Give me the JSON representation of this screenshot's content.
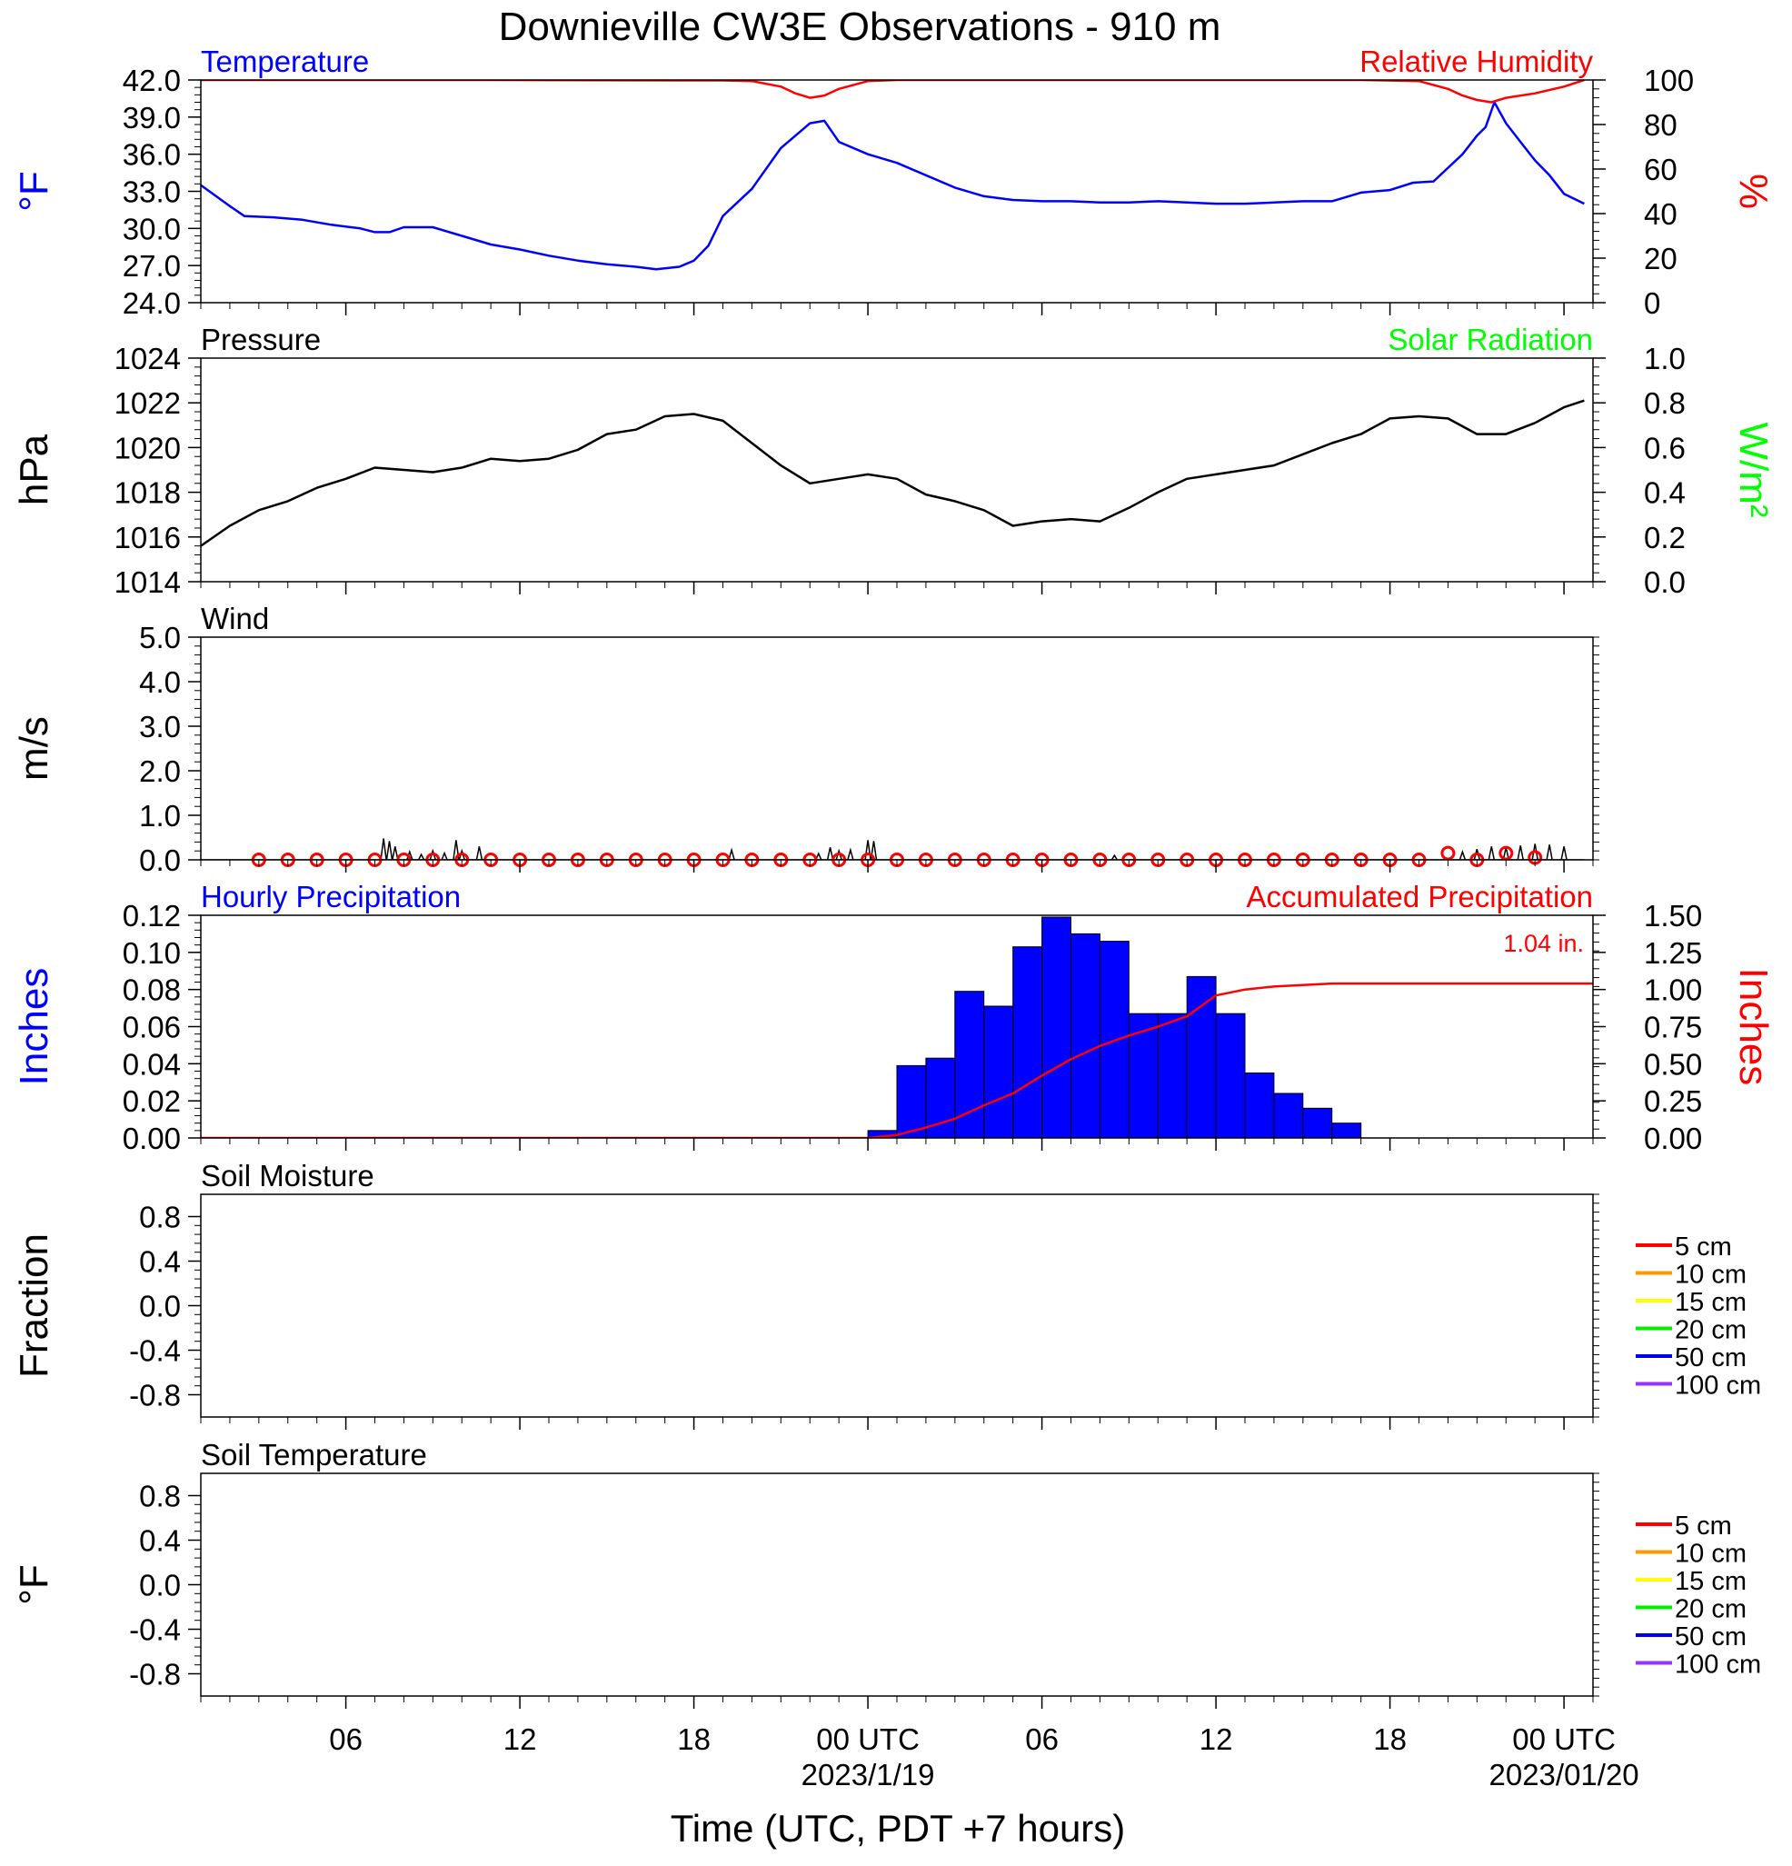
{
  "title": "Downieville CW3E Observations - 910 m",
  "xlabel": "Time (UTC, PDT +7 hours)",
  "colors": {
    "temperature": "#0000ff",
    "humidity": "#ff0000",
    "pressure": "#000000",
    "solar": "#00ff00",
    "wind": "#000000",
    "wind_marker": "#ff0000",
    "hourly_bar": "#0000ff",
    "accumulated": "#ff0000"
  },
  "time_axis": {
    "range_hours": [
      0,
      48
    ],
    "major_ticks": [
      {
        "h": 5,
        "label": "06",
        "date": ""
      },
      {
        "h": 11,
        "label": "12",
        "date": ""
      },
      {
        "h": 17,
        "label": "18",
        "date": ""
      },
      {
        "h": 23,
        "label": "00 UTC",
        "date": "2023/1/19"
      },
      {
        "h": 29,
        "label": "06",
        "date": ""
      },
      {
        "h": 35,
        "label": "12",
        "date": ""
      },
      {
        "h": 41,
        "label": "18",
        "date": ""
      },
      {
        "h": 47,
        "label": "00 UTC",
        "date": "2023/01/20"
      }
    ]
  },
  "chart_data": [
    {
      "id": "temp_rh",
      "type": "line",
      "left_title": "Temperature",
      "right_title": "Relative Humidity",
      "ylabel_left": "°F",
      "ylabel_right": "%",
      "ylim_left": [
        24,
        42
      ],
      "ylim_right": [
        0,
        100
      ],
      "yticks_left": [
        "42.0",
        "39.0",
        "36.0",
        "33.0",
        "30.0",
        "27.0",
        "24.0"
      ],
      "yticks_right": [
        "100",
        "80",
        "60",
        "40",
        "20",
        "0"
      ],
      "series": [
        {
          "name": "Temperature",
          "axis": "left",
          "x": [
            0,
            1,
            1.5,
            2.5,
            3.5,
            4.5,
            5.5,
            6,
            6.5,
            7,
            8,
            9,
            10,
            11,
            12,
            13,
            14,
            15,
            15.7,
            16.5,
            17,
            17.5,
            18,
            19,
            20,
            21,
            21.5,
            22,
            23,
            24,
            25,
            26,
            27,
            28,
            29,
            30,
            31,
            32,
            33,
            34,
            35,
            36,
            37,
            38,
            39,
            40,
            41,
            41.8,
            42.5,
            43.5,
            44,
            44.3,
            44.6,
            45,
            45.5,
            46,
            46.5,
            47,
            47.7
          ],
          "y": [
            33.5,
            31.8,
            31.0,
            30.9,
            30.7,
            30.3,
            30.0,
            29.7,
            29.7,
            30.1,
            30.1,
            29.4,
            28.7,
            28.3,
            27.8,
            27.4,
            27.1,
            26.9,
            26.7,
            26.9,
            27.4,
            28.6,
            31.0,
            33.2,
            36.5,
            38.5,
            38.7,
            37.0,
            36.0,
            35.3,
            34.3,
            33.3,
            32.6,
            32.3,
            32.2,
            32.2,
            32.1,
            32.1,
            32.2,
            32.1,
            32.0,
            32.0,
            32.1,
            32.2,
            32.2,
            32.9,
            33.1,
            33.7,
            33.8,
            36.0,
            37.5,
            38.2,
            40.2,
            38.5,
            37.0,
            35.5,
            34.3,
            32.8,
            32.0
          ]
        },
        {
          "name": "Relative Humidity",
          "axis": "right",
          "x": [
            0,
            10,
            17,
            18,
            19,
            20,
            20.5,
            21,
            21.5,
            22,
            23,
            24,
            30,
            40,
            42,
            43,
            43.5,
            44,
            44.5,
            45,
            46,
            47,
            47.7
          ],
          "y": [
            100,
            100,
            99.8,
            99.8,
            99.5,
            97,
            94,
            92,
            93,
            96,
            99.5,
            100,
            100,
            100,
            99.5,
            96,
            93,
            91,
            90,
            92,
            94,
            97,
            100
          ]
        }
      ]
    },
    {
      "id": "pressure_solar",
      "type": "line",
      "left_title": "Pressure",
      "right_title": "Solar Radiation",
      "ylabel_left": "hPa",
      "ylabel_right": "W/m²",
      "ylim_left": [
        1014,
        1024
      ],
      "ylim_right": [
        0,
        1
      ],
      "yticks_left": [
        "1024",
        "1022",
        "1020",
        "1018",
        "1016",
        "1014"
      ],
      "yticks_right": [
        "1.0",
        "0.8",
        "0.6",
        "0.4",
        "0.2",
        "0.0"
      ],
      "series": [
        {
          "name": "Pressure",
          "axis": "left",
          "x": [
            0,
            1,
            2,
            3,
            4,
            5,
            6,
            7,
            8,
            9,
            10,
            11,
            12,
            13,
            14,
            15,
            16,
            17,
            18,
            19,
            20,
            21,
            22,
            23,
            24,
            25,
            26,
            27,
            28,
            29,
            30,
            31,
            32,
            33,
            34,
            35,
            36,
            37,
            38,
            39,
            40,
            41,
            42,
            43,
            44,
            45,
            46,
            47,
            47.7
          ],
          "y": [
            1015.6,
            1016.5,
            1017.2,
            1017.6,
            1018.2,
            1018.6,
            1019.1,
            1019.0,
            1018.9,
            1019.1,
            1019.5,
            1019.4,
            1019.5,
            1019.9,
            1020.6,
            1020.8,
            1021.4,
            1021.5,
            1021.2,
            1020.2,
            1019.2,
            1018.4,
            1018.6,
            1018.8,
            1018.6,
            1017.9,
            1017.6,
            1017.2,
            1016.5,
            1016.7,
            1016.8,
            1016.7,
            1017.3,
            1018.0,
            1018.6,
            1018.8,
            1019.0,
            1019.2,
            1019.7,
            1020.2,
            1020.6,
            1021.3,
            1021.4,
            1021.3,
            1020.6,
            1020.6,
            1021.1,
            1021.8,
            1022.1
          ]
        }
      ]
    },
    {
      "id": "wind",
      "type": "line",
      "left_title": "Wind",
      "ylabel_left": "m/s",
      "ylim_left": [
        0,
        5
      ],
      "yticks_left": [
        "5.0",
        "4.0",
        "3.0",
        "2.0",
        "1.0",
        "0.0"
      ],
      "series": [
        {
          "name": "Wind",
          "axis": "left",
          "spikes": [
            [
              6.3,
              0.48
            ],
            [
              6.5,
              0.42
            ],
            [
              6.7,
              0.3
            ],
            [
              7.2,
              0.18
            ],
            [
              7.6,
              0.12
            ],
            [
              8.0,
              0.2
            ],
            [
              8.4,
              0.15
            ],
            [
              8.8,
              0.44
            ],
            [
              9.0,
              0.2
            ],
            [
              9.6,
              0.3
            ],
            [
              18.3,
              0.22
            ],
            [
              21.3,
              0.14
            ],
            [
              21.7,
              0.28
            ],
            [
              22.0,
              0.2
            ],
            [
              22.4,
              0.22
            ],
            [
              23.0,
              0.44
            ],
            [
              23.2,
              0.42
            ],
            [
              31.5,
              0.1
            ],
            [
              43.5,
              0.18
            ],
            [
              44.0,
              0.24
            ],
            [
              44.5,
              0.3
            ],
            [
              45.0,
              0.28
            ],
            [
              45.5,
              0.32
            ],
            [
              46.0,
              0.36
            ],
            [
              46.5,
              0.34
            ],
            [
              47.0,
              0.3
            ]
          ]
        },
        {
          "name": "Gust",
          "axis": "left",
          "marker": "circle",
          "x": [
            2,
            3,
            4,
            5,
            6,
            7,
            8,
            9,
            10,
            11,
            12,
            13,
            14,
            15,
            16,
            17,
            18,
            19,
            20,
            21,
            22,
            23,
            24,
            25,
            26,
            27,
            28,
            29,
            30,
            31,
            32,
            33,
            34,
            35,
            36,
            37,
            38,
            39,
            40,
            41,
            42,
            43,
            44,
            45,
            46
          ],
          "y": [
            0,
            0,
            0,
            0,
            0,
            0,
            0,
            0,
            0,
            0,
            0,
            0,
            0,
            0,
            0,
            0,
            0,
            0,
            0,
            0,
            0,
            0,
            0,
            0,
            0,
            0,
            0,
            0,
            0,
            0,
            0,
            0,
            0,
            0,
            0,
            0,
            0,
            0,
            0,
            0,
            0,
            0.15,
            0,
            0.15,
            0.05
          ]
        }
      ]
    },
    {
      "id": "precip",
      "type": "bar",
      "left_title": "Hourly Precipitation",
      "right_title": "Accumulated Precipitation",
      "annotation": "1.04 in.",
      "ylabel_left": "Inches",
      "ylabel_right": "Inches",
      "ylim_left": [
        0,
        0.12
      ],
      "ylim_right": [
        0,
        1.5
      ],
      "yticks_left": [
        "0.12",
        "0.10",
        "0.08",
        "0.06",
        "0.04",
        "0.02",
        "0.00"
      ],
      "yticks_right": [
        "1.50",
        "1.25",
        "1.00",
        "0.75",
        "0.50",
        "0.25",
        "0.00"
      ],
      "bars": {
        "name": "Hourly Precipitation",
        "start_hours": [
          23,
          24,
          25,
          26,
          27,
          28,
          29,
          30,
          31,
          32,
          33,
          34,
          35,
          36,
          37,
          38,
          39
        ],
        "values": [
          0.004,
          0.039,
          0.043,
          0.079,
          0.071,
          0.103,
          0.119,
          0.11,
          0.106,
          0.067,
          0.067,
          0.087,
          0.067,
          0.035,
          0.024,
          0.016,
          0.008
        ]
      },
      "series": [
        {
          "name": "Accumulated Precipitation",
          "axis": "right",
          "x": [
            0,
            23,
            24,
            25,
            26,
            27,
            28,
            29,
            30,
            31,
            32,
            33,
            34,
            35,
            36,
            37,
            38,
            39,
            40,
            48
          ],
          "y": [
            0,
            0,
            0.02,
            0.07,
            0.13,
            0.22,
            0.3,
            0.42,
            0.53,
            0.62,
            0.69,
            0.75,
            0.82,
            0.96,
            1.0,
            1.02,
            1.03,
            1.04,
            1.04,
            1.04
          ]
        }
      ]
    },
    {
      "id": "soil_moisture",
      "type": "line",
      "left_title": "Soil Moisture",
      "ylabel_left": "Fraction",
      "ylim_left": [
        -1.0,
        1.0
      ],
      "yticks_left": [
        "0.8",
        "0.4",
        "0.0",
        "-0.4",
        "-0.8"
      ],
      "legend": [
        {
          "label": "5 cm",
          "color": "#ff0000"
        },
        {
          "label": "10 cm",
          "color": "#ff9900"
        },
        {
          "label": "15 cm",
          "color": "#ffff00"
        },
        {
          "label": "20 cm",
          "color": "#00ee00"
        },
        {
          "label": "50 cm",
          "color": "#0000ee"
        },
        {
          "label": "100 cm",
          "color": "#9933ff"
        }
      ]
    },
    {
      "id": "soil_temperature",
      "type": "line",
      "left_title": "Soil Temperature",
      "ylabel_left": "°F",
      "ylim_left": [
        -1.0,
        1.0
      ],
      "yticks_left": [
        "0.8",
        "0.4",
        "0.0",
        "-0.4",
        "-0.8"
      ],
      "legend": [
        {
          "label": "5 cm",
          "color": "#ff0000"
        },
        {
          "label": "10 cm",
          "color": "#ff9900"
        },
        {
          "label": "15 cm",
          "color": "#ffff00"
        },
        {
          "label": "20 cm",
          "color": "#00ee00"
        },
        {
          "label": "50 cm",
          "color": "#0000ee"
        },
        {
          "label": "100 cm",
          "color": "#9933ff"
        }
      ]
    }
  ]
}
